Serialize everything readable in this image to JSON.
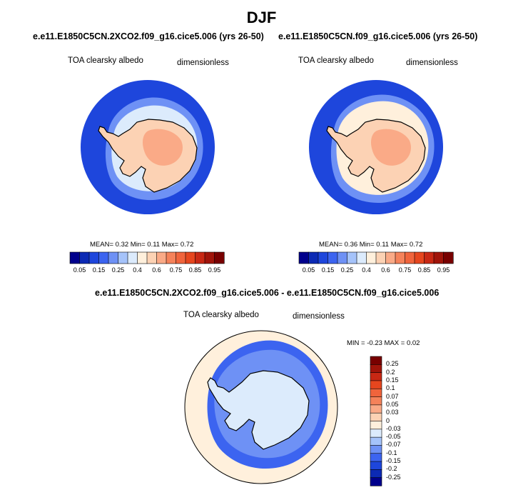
{
  "figure": {
    "title": "DJF"
  },
  "chart_data": [
    {
      "type": "polar_contour_map",
      "title": "e.e11.E1850C5CN.2XCO2.f09_g16.cice5.006 (yrs 26-50)",
      "left_label": "TOA clearsky albedo",
      "right_label": "dimensionless",
      "stats": {
        "mean_label": "MEAN=",
        "mean": "0.32",
        "min_label": "Min=",
        "min": "0.11",
        "max_label": "Max=",
        "max": "0.72"
      },
      "colorbar": {
        "levels": [
          0.05,
          0.1,
          0.15,
          0.2,
          0.25,
          0.3,
          0.4,
          0.5,
          0.6,
          0.65,
          0.75,
          0.8,
          0.85,
          0.9,
          0.95
        ],
        "tick_labels": [
          "0.05",
          "0.15",
          "0.25",
          "0.4",
          "0.6",
          "0.75",
          "0.85",
          "0.95"
        ],
        "colors": [
          "#00008c",
          "#0c2ab4",
          "#1e46dc",
          "#3c64f0",
          "#6e91f5",
          "#a5c3fa",
          "#dcebfc",
          "#fff0dc",
          "#fcd2b4",
          "#faaa87",
          "#f5825a",
          "#f0643c",
          "#e6461e",
          "#c82814",
          "#a0140a",
          "#780000"
        ]
      },
      "regions": {
        "ocean_far": "#1e46dc",
        "ocean_mid": "#6e91f5",
        "sea_ice_edge": "#dcebfc",
        "continent": "#fcd2b4",
        "continent_high": "#faaa87"
      }
    },
    {
      "type": "polar_contour_map",
      "title": "e.e11.E1850C5CN.f09_g16.cice5.006 (yrs 26-50)",
      "left_label": "TOA clearsky albedo",
      "right_label": "dimensionless",
      "stats": {
        "mean_label": "MEAN=",
        "mean": "0.36",
        "min_label": "Min=",
        "min": "0.11",
        "max_label": "Max=",
        "max": "0.72"
      },
      "colorbar": {
        "levels": [
          0.05,
          0.1,
          0.15,
          0.2,
          0.25,
          0.3,
          0.4,
          0.5,
          0.6,
          0.65,
          0.75,
          0.8,
          0.85,
          0.9,
          0.95
        ],
        "tick_labels": [
          "0.05",
          "0.15",
          "0.25",
          "0.4",
          "0.6",
          "0.75",
          "0.85",
          "0.95"
        ],
        "colors": [
          "#00008c",
          "#0c2ab4",
          "#1e46dc",
          "#3c64f0",
          "#6e91f5",
          "#a5c3fa",
          "#dcebfc",
          "#fff0dc",
          "#fcd2b4",
          "#faaa87",
          "#f5825a",
          "#f0643c",
          "#e6461e",
          "#c82814",
          "#a0140a",
          "#780000"
        ]
      },
      "regions": {
        "ocean_far": "#1e46dc",
        "ocean_mid": "#6e91f5",
        "sea_ice_edge": "#fff0dc",
        "continent": "#fcd2b4",
        "continent_high": "#faaa87"
      }
    },
    {
      "type": "polar_contour_map",
      "title": "e.e11.E1850C5CN.2XCO2.f09_g16.cice5.006 - e.e11.E1850C5CN.f09_g16.cice5.006",
      "left_label": "TOA clearsky albedo",
      "right_label": "dimensionless",
      "stats": {
        "min_label": "MIN =",
        "min": "-0.23",
        "max_label": "MAX =",
        "max": "0.02"
      },
      "colorbar": {
        "orientation": "vertical",
        "tick_labels": [
          "0.25",
          "0.2",
          "0.15",
          "0.1",
          "0.07",
          "0.05",
          "0.03",
          "0",
          "-0.03",
          "-0.05",
          "-0.07",
          "-0.1",
          "-0.15",
          "-0.2",
          "-0.25"
        ],
        "colors": [
          "#780000",
          "#a0140a",
          "#c82814",
          "#e6461e",
          "#f0643c",
          "#f5825a",
          "#faaa87",
          "#fcd2b4",
          "#fff0dc",
          "#dcebfc",
          "#a5c3fa",
          "#6e91f5",
          "#3c64f0",
          "#1e46dc",
          "#0c2ab4",
          "#00008c"
        ]
      },
      "regions": {
        "outer": "#fff0dc",
        "ring": "#3c64f0",
        "ring_inner": "#6e91f5",
        "continent": "#dcebfc"
      }
    }
  ]
}
